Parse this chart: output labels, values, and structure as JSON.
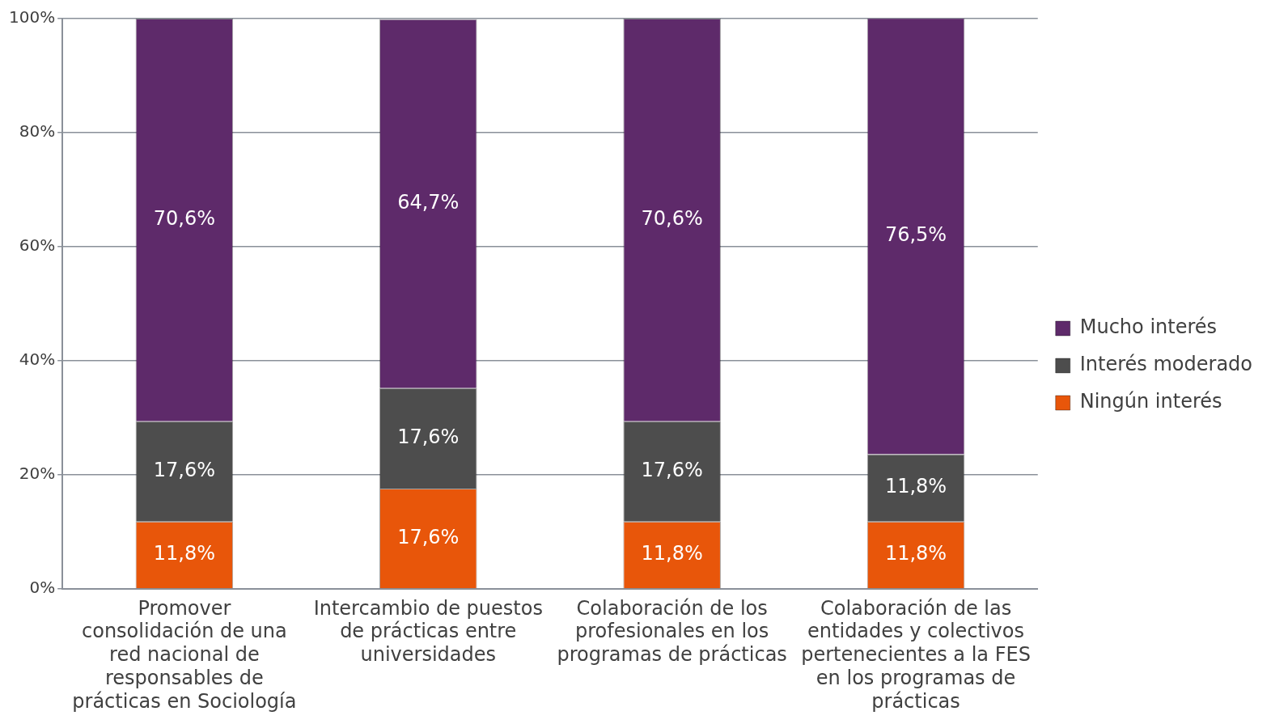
{
  "chart_data": {
    "type": "bar",
    "stacked": true,
    "categories": [
      "Promover consolidación de una red nacional de responsables de prácticas en Sociología",
      "Intercambio de puestos de prácticas entre universidades",
      "Colaboración de los profesionales en los programas de prácticas",
      "Colaboración de las entidades y colectivos pertenecientes a la FES en los programas de prácticas"
    ],
    "series": [
      {
        "name": "Ningún interés",
        "color": "#e8560a",
        "values": [
          11.8,
          17.6,
          11.8,
          11.8
        ],
        "value_labels": [
          "11,8%",
          "17,6%",
          "11,8%",
          "11,8%"
        ]
      },
      {
        "name": "Interés moderado",
        "color": "#4d4d4d",
        "values": [
          17.6,
          17.6,
          17.6,
          11.8
        ],
        "value_labels": [
          "17,6%",
          "17,6%",
          "17,6%",
          "11,8%"
        ]
      },
      {
        "name": "Mucho interés",
        "color": "#5e2a6a",
        "values": [
          70.6,
          64.7,
          70.6,
          76.5
        ],
        "value_labels": [
          "70,6%",
          "64,7%",
          "70,6%",
          "76,5%"
        ]
      }
    ],
    "ylim": [
      0,
      100
    ],
    "yticks": [
      {
        "value": 0,
        "label": "0%"
      },
      {
        "value": 20,
        "label": "20%"
      },
      {
        "value": 40,
        "label": "40%"
      },
      {
        "value": 60,
        "label": "60%"
      },
      {
        "value": 80,
        "label": "80%"
      },
      {
        "value": 100,
        "label": "100%"
      }
    ],
    "grid": "y",
    "legend": "right"
  }
}
